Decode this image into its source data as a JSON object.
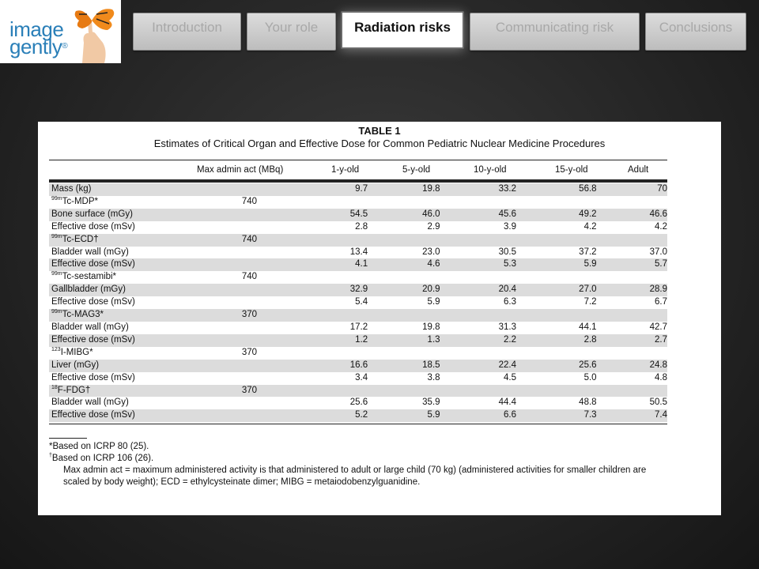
{
  "logo": {
    "line1": "image",
    "line2": "gently",
    "mark": "®",
    "icon": "butterfly-on-hand-icon"
  },
  "nav": {
    "tabs": [
      {
        "label": "Introduction",
        "active": false
      },
      {
        "label": "Your role",
        "active": false
      },
      {
        "label": "Radiation risks",
        "active": true
      },
      {
        "label": "Communicating risk",
        "active": false
      },
      {
        "label": "Conclusions",
        "active": false
      }
    ]
  },
  "table": {
    "title": "TABLE 1",
    "subtitle": "Estimates of Critical Organ and Effective Dose for Common Pediatric Nuclear Medicine Procedures",
    "headers": [
      "Max admin act (MBq)",
      "1-y-old",
      "5-y-old",
      "10-y-old",
      "15-y-old",
      "Adult"
    ],
    "rows": [
      {
        "label": "Mass (kg)",
        "act": "",
        "values": [
          "9.7",
          "19.8",
          "33.2",
          "56.8",
          "70"
        ]
      },
      {
        "sup": "99m",
        "label": "Tc-MDP*",
        "act": "740",
        "values": [
          "",
          "",
          "",
          "",
          ""
        ]
      },
      {
        "label": "Bone surface (mGy)",
        "act": "",
        "values": [
          "54.5",
          "46.0",
          "45.6",
          "49.2",
          "46.6"
        ]
      },
      {
        "label": "Effective dose (mSv)",
        "act": "",
        "values": [
          "2.8",
          "2.9",
          "3.9",
          "4.2",
          "4.2"
        ]
      },
      {
        "sup": "99m",
        "label": "Tc-ECD†",
        "act": "740",
        "values": [
          "",
          "",
          "",
          "",
          ""
        ]
      },
      {
        "label": "Bladder wall (mGy)",
        "act": "",
        "values": [
          "13.4",
          "23.0",
          "30.5",
          "37.2",
          "37.0"
        ]
      },
      {
        "label": "Effective dose (mSv)",
        "act": "",
        "values": [
          "4.1",
          "4.6",
          "5.3",
          "5.9",
          "5.7"
        ]
      },
      {
        "sup": "99m",
        "label": "Tc-sestamibi*",
        "act": "740",
        "values": [
          "",
          "",
          "",
          "",
          ""
        ]
      },
      {
        "label": "Gallbladder (mGy)",
        "act": "",
        "values": [
          "32.9",
          "20.9",
          "20.4",
          "27.0",
          "28.9"
        ]
      },
      {
        "label": "Effective dose (mSv)",
        "act": "",
        "values": [
          "5.4",
          "5.9",
          "6.3",
          "7.2",
          "6.7"
        ]
      },
      {
        "sup": "99m",
        "label": "Tc-MAG3*",
        "act": "370",
        "values": [
          "",
          "",
          "",
          "",
          ""
        ]
      },
      {
        "label": "Bladder wall (mGy)",
        "act": "",
        "values": [
          "17.2",
          "19.8",
          "31.3",
          "44.1",
          "42.7"
        ]
      },
      {
        "label": "Effective dose (mSv)",
        "act": "",
        "values": [
          "1.2",
          "1.3",
          "2.2",
          "2.8",
          "2.7"
        ]
      },
      {
        "sup": "123",
        "label": "I-MIBG*",
        "act": "370",
        "values": [
          "",
          "",
          "",
          "",
          ""
        ]
      },
      {
        "label": "Liver (mGy)",
        "act": "",
        "values": [
          "16.6",
          "18.5",
          "22.4",
          "25.6",
          "24.8"
        ]
      },
      {
        "label": "Effective dose (mSv)",
        "act": "",
        "values": [
          "3.4",
          "3.8",
          "4.5",
          "5.0",
          "4.8"
        ]
      },
      {
        "sup": "18",
        "label": "F-FDG†",
        "act": "370",
        "values": [
          "",
          "",
          "",
          "",
          ""
        ]
      },
      {
        "label": "Bladder wall (mGy)",
        "act": "",
        "values": [
          "25.6",
          "35.9",
          "44.4",
          "48.8",
          "50.5"
        ]
      },
      {
        "label": "Effective dose (mSv)",
        "act": "",
        "values": [
          "5.2",
          "5.9",
          "6.6",
          "7.3",
          "7.4"
        ]
      }
    ],
    "notes": {
      "n1": "*Based on ICRP 80 (25).",
      "n2_mark": "†",
      "n2": "Based on ICRP 106 (26).",
      "n3": "Max admin act = maximum administered activity is that administered to adult or large child (70 kg) (administered activities for smaller children are scaled by body weight); ECD = ethylcysteinate dimer; MIBG = metaiodobenzylguanidine."
    }
  },
  "colors": {
    "background": "#262626",
    "tab_inactive": "#c8c8c8",
    "tab_active": "#ffffff",
    "logo_blue": "#2a7fb8",
    "row_shade": "#dcdcdc"
  }
}
